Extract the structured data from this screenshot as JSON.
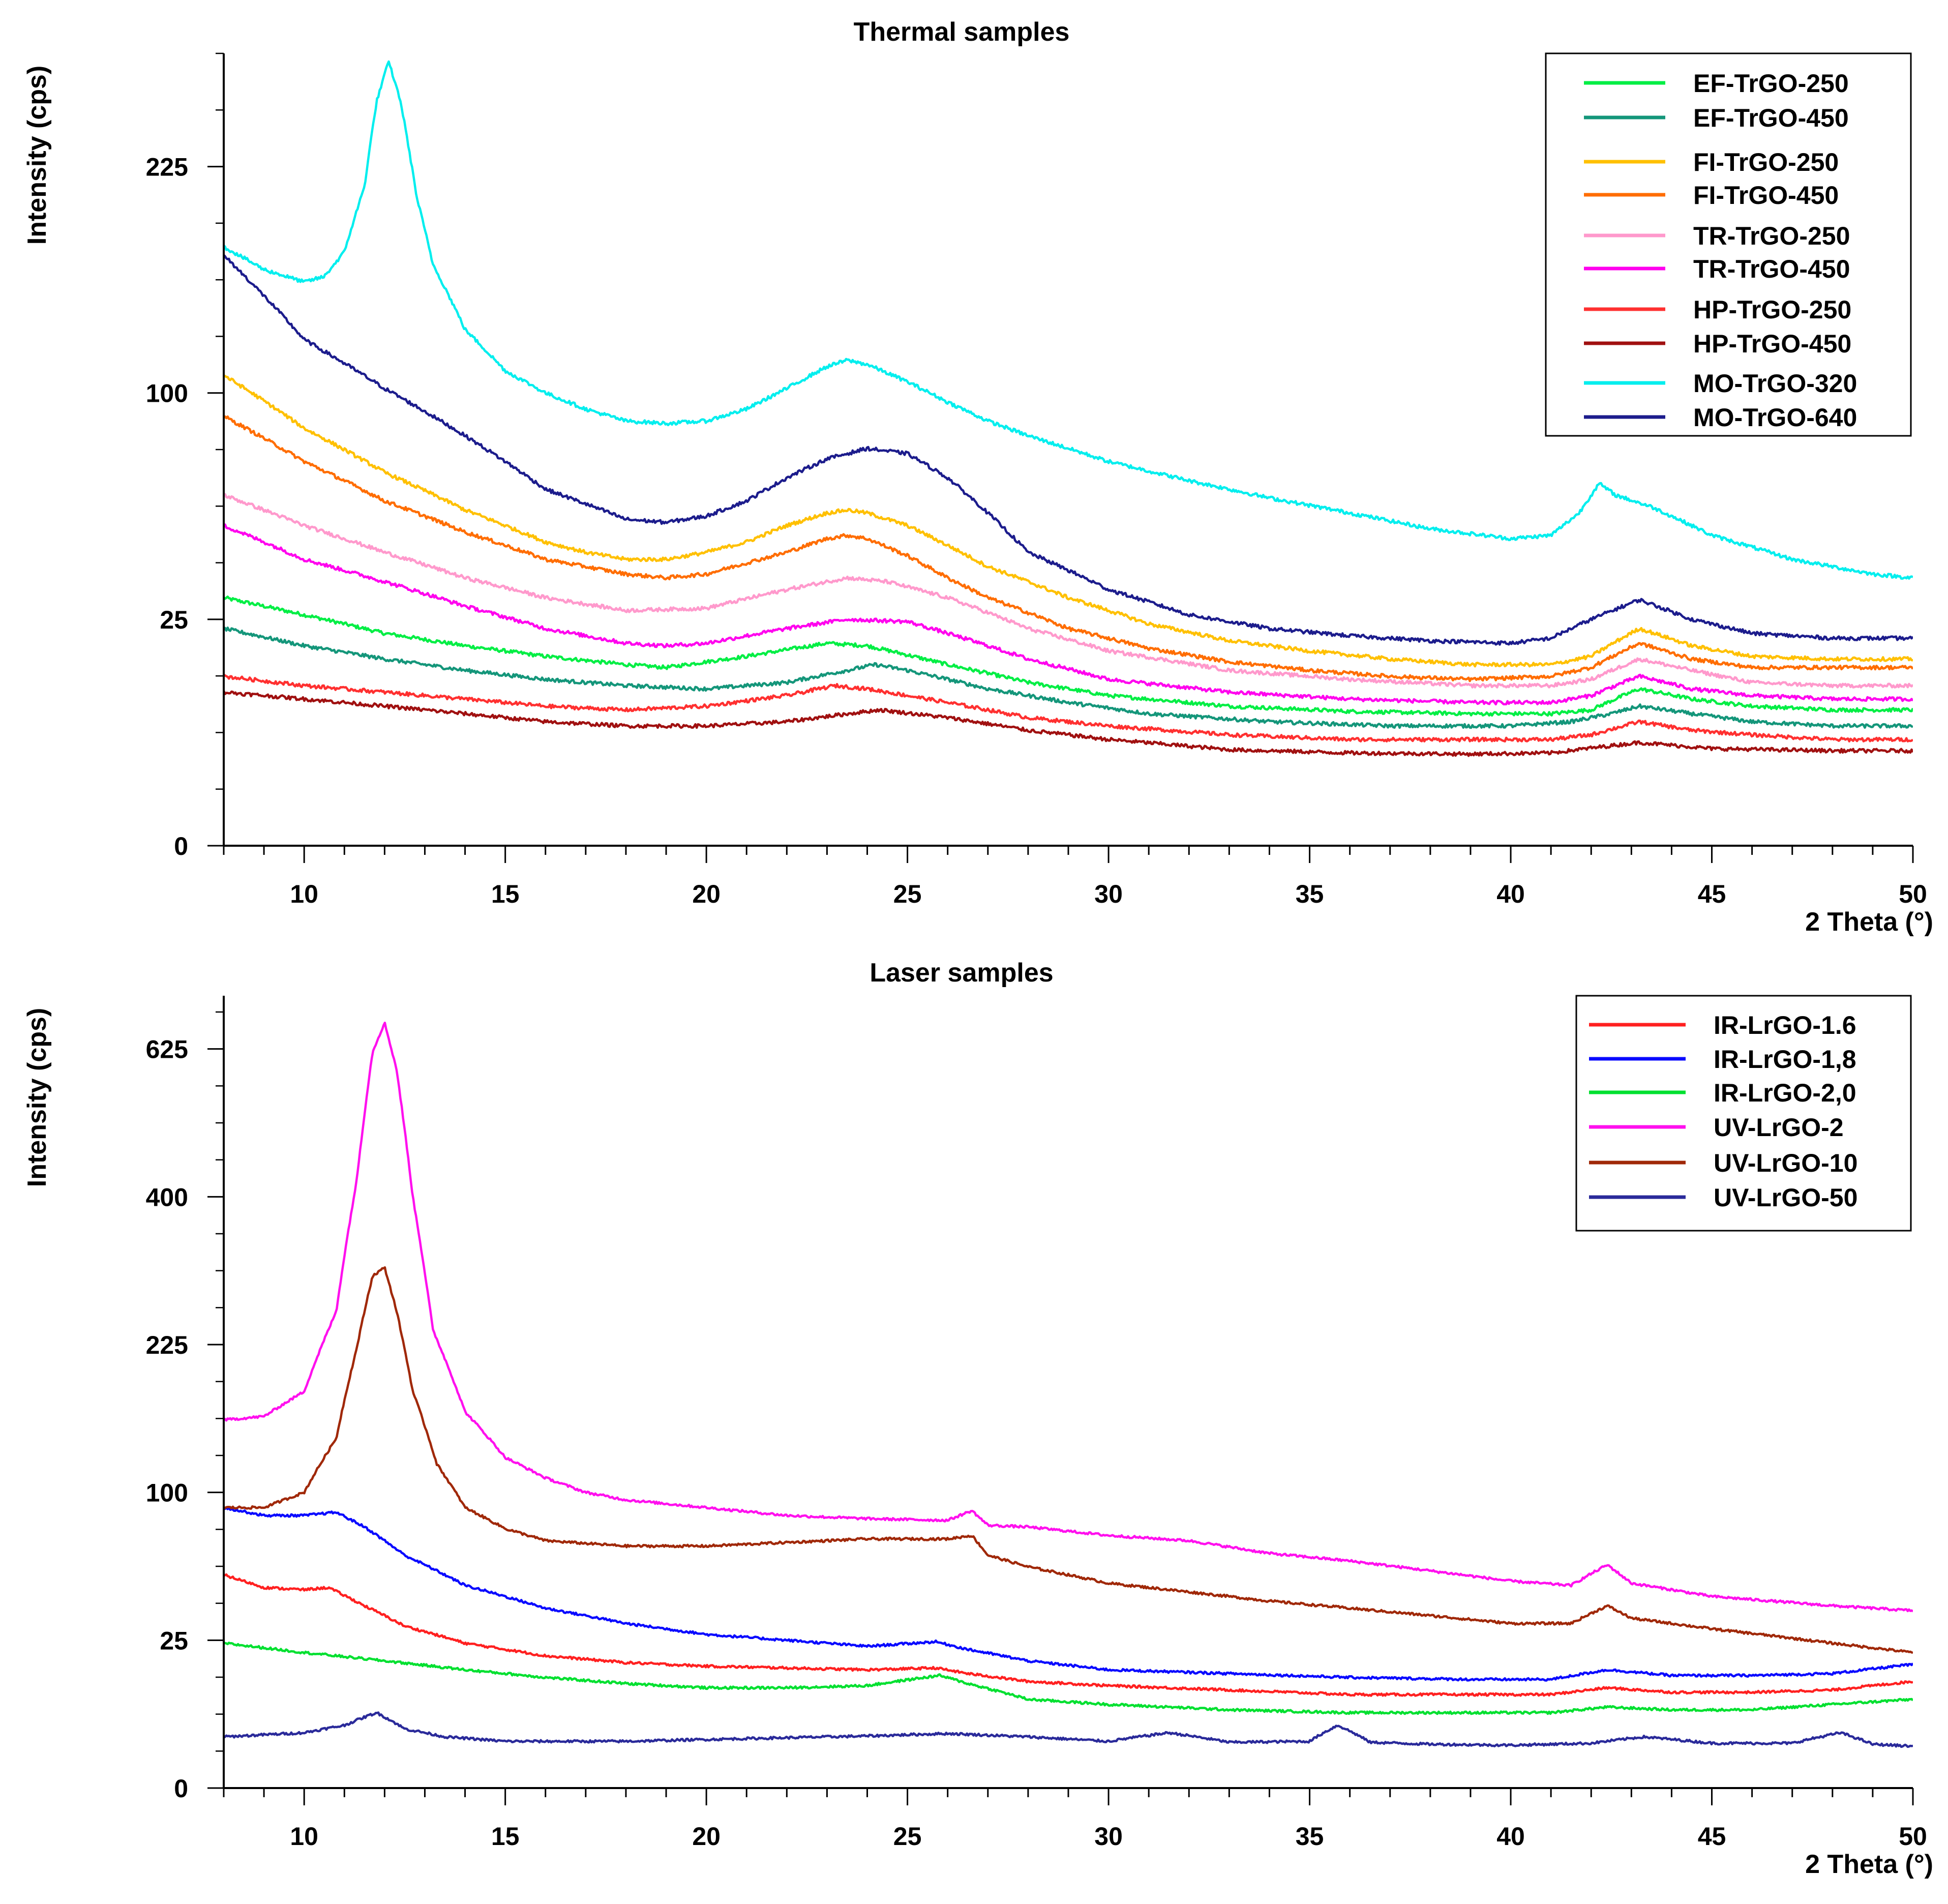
{
  "chart_data": [
    {
      "type": "line",
      "title": "Thermal samples",
      "xlabel": "2 Theta (°)",
      "ylabel": "Intensity (cps)",
      "xlim": [
        8,
        50
      ],
      "x_ticks": [
        10,
        15,
        20,
        25,
        30,
        35,
        40,
        45,
        50
      ],
      "y_axis_scale": "sqrt",
      "y_ticks": [
        0,
        25,
        100,
        225
      ],
      "legend_position": "top-right",
      "grid": false,
      "series": [
        {
          "name": "EF-TrGO-250",
          "color": "#00ee44",
          "x": [
            8,
            10,
            12,
            14,
            16,
            18,
            19,
            21,
            23,
            24,
            26,
            28,
            30,
            33,
            36,
            39,
            41,
            42,
            43.2,
            44.5,
            46,
            48,
            50
          ],
          "y": [
            30,
            26,
            22,
            19.5,
            17.5,
            16,
            15.5,
            17.5,
            20,
            19.5,
            16,
            13,
            11,
            9.5,
            8.8,
            8.5,
            8.5,
            9,
            12,
            10.5,
            9.5,
            9,
            9
          ]
        },
        {
          "name": "EF-TrGO-450",
          "color": "#14967a",
          "x": [
            8,
            10,
            12,
            14,
            16,
            18,
            20,
            22,
            23.5,
            24.2,
            25,
            27,
            29,
            31,
            34,
            37,
            40,
            41.5,
            42.5,
            43.2,
            44.5,
            46,
            48,
            50
          ],
          "y": [
            23,
            19.5,
            17,
            15,
            13.5,
            12.5,
            12,
            13,
            15,
            16,
            15,
            12,
            10,
            8.5,
            7.5,
            7,
            7,
            7.5,
            8.5,
            9.5,
            8.5,
            7.5,
            7,
            7
          ]
        },
        {
          "name": "FI-TrGO-250",
          "color": "#ffc000",
          "x": [
            8,
            10,
            12,
            14,
            16,
            17,
            18,
            19,
            20,
            21,
            22,
            23,
            23.5,
            24,
            25,
            26,
            27,
            29,
            31,
            33,
            35,
            37,
            39,
            41,
            42,
            43.2,
            44.5,
            46,
            48,
            50
          ],
          "y": [
            108,
            85,
            68,
            55,
            45,
            42,
            40,
            40,
            42,
            45,
            50,
            54,
            55,
            54,
            50,
            44,
            38,
            30,
            24,
            20.5,
            18.5,
            17,
            16,
            16,
            17.5,
            23,
            19.5,
            17.5,
            17,
            17
          ]
        },
        {
          "name": "FI-TrGO-450",
          "color": "#ff6d00",
          "x": [
            8,
            10,
            12,
            14,
            16,
            18,
            19,
            20,
            22,
            23,
            23.5,
            24,
            25,
            26,
            27,
            29,
            31,
            33,
            35,
            37,
            39,
            41,
            42,
            43.2,
            44.5,
            46,
            48,
            50
          ],
          "y": [
            90,
            72,
            58,
            48,
            40,
            36,
            35,
            36,
            42,
            46,
            47,
            46,
            41,
            35,
            30,
            23,
            19,
            16.5,
            15,
            14,
            13.5,
            14,
            15.5,
            20,
            17,
            15.5,
            15.5,
            15.5
          ]
        },
        {
          "name": "TR-TrGO-250",
          "color": "#ff99cc",
          "x": [
            8,
            10,
            12,
            14,
            16,
            18,
            20,
            22,
            23.5,
            24.5,
            26,
            28,
            30,
            33,
            36,
            39,
            41,
            42,
            43.2,
            44.5,
            46,
            48,
            50
          ],
          "y": [
            60,
            50,
            42,
            35,
            30,
            27,
            27.5,
            32,
            35,
            34,
            30,
            23,
            18.5,
            15,
            13.5,
            12.5,
            12.5,
            13.5,
            17,
            15,
            13,
            12.5,
            12.5
          ]
        },
        {
          "name": "TR-TrGO-450",
          "color": "#ff00ee",
          "x": [
            8,
            10,
            11,
            12,
            14,
            16,
            18,
            19,
            20,
            22,
            23.5,
            25,
            26,
            28,
            30,
            33,
            36,
            39,
            41,
            42,
            43.2,
            44.5,
            46,
            48,
            50
          ],
          "y": [
            50,
            40,
            37,
            34,
            28,
            23,
            20,
            19.5,
            20,
            23,
            25,
            24.5,
            22,
            17,
            13.5,
            11.5,
            10.5,
            10,
            10,
            11,
            14,
            12,
            11,
            10.5,
            10.5
          ]
        },
        {
          "name": "HP-TrGO-250",
          "color": "#ff3030",
          "x": [
            8,
            10,
            12,
            14,
            16,
            18,
            20,
            22,
            23.2,
            24,
            26,
            28,
            30,
            33,
            36,
            39,
            41,
            42,
            43.2,
            44.5,
            46,
            48,
            50
          ],
          "y": [
            14,
            12.5,
            11.5,
            10.5,
            9.5,
            9,
            9.5,
            11,
            12.5,
            12,
            10,
            8,
            7,
            6,
            5.5,
            5.5,
            5.5,
            6,
            7.5,
            6.5,
            6,
            5.5,
            5.5
          ]
        },
        {
          "name": "HP-TrGO-450",
          "color": "#a01010",
          "x": [
            8,
            10,
            12,
            14,
            16,
            18,
            20,
            22,
            24.3,
            26,
            28,
            30,
            33,
            36,
            39,
            41,
            43.2,
            45,
            48,
            50
          ],
          "y": [
            11.5,
            10.5,
            9.5,
            8.5,
            7.5,
            7,
            7,
            7.5,
            9,
            8,
            6.5,
            5.5,
            4.5,
            4.2,
            4.1,
            4.2,
            5.2,
            4.6,
            4.4,
            4.4
          ]
        },
        {
          "name": "MO-TrGO-320",
          "color": "#00eeee",
          "x": [
            8,
            9,
            10,
            10.5,
            11,
            11.5,
            11.8,
            12.1,
            12.4,
            12.8,
            13.2,
            14,
            15,
            16,
            17,
            18,
            19,
            20,
            21,
            22,
            23,
            23.5,
            24,
            25,
            26,
            27,
            28,
            30,
            32,
            34,
            36,
            38,
            40,
            41,
            41.7,
            42.2,
            42.6,
            43.5,
            45,
            47,
            49,
            50
          ],
          "y": [
            175,
            162,
            155,
            158,
            172,
            212,
            270,
            300,
            270,
            205,
            165,
            130,
            110,
            100,
            93,
            88,
            87,
            88,
            93,
            102,
            112,
            115,
            113,
            105,
            96,
            88,
            82,
            72,
            65,
            59,
            54,
            49,
            46,
            47,
            54,
            64,
            60,
            56,
            47,
            40,
            36,
            35
          ]
        },
        {
          "name": "MO-TrGO-640",
          "color": "#1c1c8c",
          "x": [
            8,
            10,
            12,
            14,
            16,
            18,
            19,
            20,
            21,
            22,
            23,
            24,
            25,
            26,
            27,
            28,
            30,
            32,
            34,
            36,
            38,
            40,
            41,
            42,
            43.2,
            44.5,
            46,
            48,
            50
          ],
          "y": [
            170,
            125,
            102,
            82,
            62,
            52,
            51,
            53,
            58,
            66,
            73,
            77,
            75,
            66,
            54,
            42,
            32,
            26,
            23,
            21.5,
            20.5,
            20,
            21,
            25,
            29.5,
            25,
            22,
            21,
            21
          ]
        }
      ]
    },
    {
      "type": "line",
      "title": "Laser samples",
      "xlabel": "2 Theta (°)",
      "ylabel": "Intensity (cps)",
      "xlim": [
        8,
        50
      ],
      "x_ticks": [
        10,
        15,
        20,
        25,
        30,
        35,
        40,
        45,
        50
      ],
      "y_axis_scale": "sqrt",
      "y_ticks": [
        0,
        25,
        100,
        225,
        400,
        625
      ],
      "legend_position": "top-right",
      "grid": false,
      "series": [
        {
          "name": "IR-LrGO-1.6",
          "color": "#ff2020",
          "x": [
            8,
            9,
            10,
            10.6,
            11.5,
            12.5,
            14,
            16,
            18,
            20,
            22,
            24,
            25.7,
            26.5,
            28,
            30,
            33,
            36,
            39,
            41,
            42.4,
            44,
            46,
            48,
            50
          ],
          "y": [
            52,
            46,
            45,
            46,
            38,
            30,
            24,
            20,
            18,
            17,
            16.5,
            16,
            16.5,
            15,
            13,
            12,
            11,
            10,
            10,
            10,
            11.5,
            10.5,
            10.5,
            11,
            13
          ]
        },
        {
          "name": "IR-LrGO-1,8",
          "color": "#0a0aff",
          "x": [
            8,
            9,
            10,
            10.8,
            11.5,
            12.5,
            14,
            16,
            18,
            20,
            22,
            24,
            25.7,
            26.5,
            28,
            30,
            33,
            36,
            39,
            41,
            42.4,
            44,
            46,
            48,
            50
          ],
          "y": [
            90,
            85,
            85,
            87,
            78,
            62,
            47,
            37,
            31,
            27,
            25,
            23,
            24.5,
            22,
            18.5,
            16,
            15,
            14,
            13.5,
            13.5,
            16,
            14.5,
            14.5,
            15,
            17.5
          ]
        },
        {
          "name": "IR-LrGO-2,0",
          "color": "#00e030",
          "x": [
            8,
            10,
            12,
            14,
            16,
            18,
            20,
            22,
            24,
            25.8,
            26.5,
            28,
            30,
            33,
            36,
            39,
            41,
            42.4,
            44,
            46,
            48,
            50
          ],
          "y": [
            24,
            21,
            18.5,
            16,
            14,
            12.5,
            11.5,
            11.5,
            12,
            14.5,
            12.5,
            9,
            8,
            7,
            6.5,
            6.5,
            6.5,
            7.5,
            7,
            7,
            8,
            9
          ]
        },
        {
          "name": "UV-LrGO-2",
          "color": "#ff10ee",
          "x": [
            8,
            9,
            10,
            10.8,
            11.3,
            11.7,
            12,
            12.3,
            12.7,
            13.2,
            14,
            15,
            16,
            17,
            18,
            20,
            22,
            24,
            26,
            26.6,
            27,
            28,
            30,
            32,
            34,
            36,
            38,
            40,
            41.5,
            42.4,
            43,
            45,
            48,
            50
          ],
          "y": [
            155,
            158,
            180,
            260,
            420,
            620,
            670,
            590,
            400,
            240,
            162,
            125,
            110,
            100,
            95,
            90,
            85,
            83,
            82,
            88,
            79,
            78,
            73,
            70,
            63,
            59,
            54,
            49,
            47,
            57,
            48,
            42,
            38,
            36
          ]
        },
        {
          "name": "UV-LrGO-10",
          "color": "#a02808",
          "x": [
            8,
            9,
            10,
            10.8,
            11.3,
            11.7,
            12,
            12.3,
            12.7,
            13.3,
            14,
            15,
            16,
            18,
            20,
            22,
            24,
            26,
            26.6,
            27,
            28,
            30,
            32,
            34,
            36,
            38,
            40,
            41.5,
            42.4,
            43,
            45,
            48,
            50
          ],
          "y": [
            90,
            90,
            100,
            140,
            220,
            300,
            310,
            260,
            180,
            120,
            90,
            77,
            70,
            67,
            67,
            69,
            71,
            71,
            73,
            62,
            56,
            48,
            44,
            40,
            37,
            34,
            31,
            31,
            38,
            33,
            29,
            24,
            21
          ]
        },
        {
          "name": "UV-LrGO-50",
          "color": "#2a2a9a",
          "x": [
            8,
            10,
            11,
            11.8,
            12.5,
            13.5,
            15,
            18,
            20,
            22,
            24,
            26,
            28,
            30,
            31.5,
            33,
            35,
            35.7,
            36.5,
            38,
            40,
            42,
            43.3,
            45,
            47,
            48.2,
            49,
            50
          ],
          "y": [
            3,
            3.5,
            4.5,
            6.5,
            4,
            3,
            2.5,
            2.5,
            2.7,
            2.9,
            3.1,
            3.4,
            3,
            2.5,
            3.5,
            2.4,
            2.5,
            4.5,
            2.4,
            2.2,
            2.1,
            2.3,
            3,
            2.3,
            2.3,
            3.5,
            2.2,
            2
          ]
        }
      ]
    }
  ]
}
